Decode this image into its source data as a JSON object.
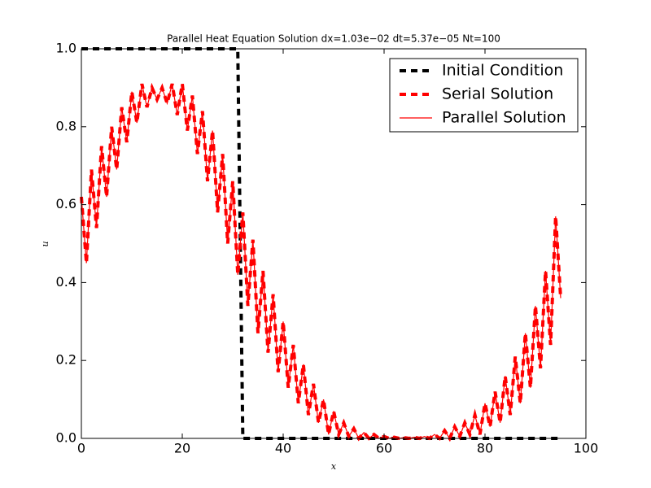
{
  "chart_data": {
    "type": "line",
    "title": "Parallel Heat Equation Solution dx=1.03e−02  dt=5.37e−05  Nt=100",
    "xlabel": "x",
    "ylabel": "u",
    "x": [
      0,
      1,
      2,
      3,
      4,
      5,
      6,
      7,
      8,
      9,
      10,
      11,
      12,
      13,
      14,
      15,
      16,
      17,
      18,
      19,
      20,
      21,
      22,
      23,
      24,
      25,
      26,
      27,
      28,
      29,
      30,
      31,
      32,
      33,
      34,
      35,
      36,
      37,
      38,
      39,
      40,
      41,
      42,
      43,
      44,
      45,
      46,
      47,
      48,
      49,
      50,
      51,
      52,
      53,
      54,
      55,
      56,
      57,
      58,
      59,
      60,
      61,
      62,
      63,
      64,
      65,
      66,
      67,
      68,
      69,
      70,
      71,
      72,
      73,
      74,
      75,
      76,
      77,
      78,
      79,
      80,
      81,
      82,
      83,
      84,
      85,
      86,
      87,
      88,
      89,
      90,
      91,
      92,
      93,
      94,
      95
    ],
    "series": [
      {
        "name": "Initial Condition",
        "color": "#000000",
        "linestyle": "dashed",
        "values": [
          1,
          1,
          1,
          1,
          1,
          1,
          1,
          1,
          1,
          1,
          1,
          1,
          1,
          1,
          1,
          1,
          1,
          1,
          1,
          1,
          1,
          1,
          1,
          1,
          1,
          1,
          1,
          1,
          1,
          1,
          1,
          1,
          0,
          0,
          0,
          0,
          0,
          0,
          0,
          0,
          0,
          0,
          0,
          0,
          0,
          0,
          0,
          0,
          0,
          0,
          0,
          0,
          0,
          0,
          0,
          0,
          0,
          0,
          0,
          0,
          0,
          0,
          0,
          0,
          0,
          0,
          0,
          0,
          0,
          0,
          0,
          0,
          0,
          0,
          0,
          0,
          0,
          0,
          0,
          0,
          0,
          0,
          0,
          0,
          0,
          0,
          0,
          0,
          0,
          0,
          0,
          0,
          0,
          0,
          0,
          0
        ]
      },
      {
        "name": "Serial Solution",
        "color": "#ff0000",
        "linestyle": "dashed",
        "values": [
          0.62,
          0.45,
          0.69,
          0.54,
          0.75,
          0.62,
          0.8,
          0.69,
          0.85,
          0.76,
          0.89,
          0.81,
          0.91,
          0.85,
          0.9,
          0.87,
          0.9,
          0.86,
          0.91,
          0.83,
          0.91,
          0.79,
          0.88,
          0.73,
          0.84,
          0.66,
          0.79,
          0.58,
          0.73,
          0.5,
          0.66,
          0.42,
          0.58,
          0.34,
          0.51,
          0.27,
          0.43,
          0.22,
          0.37,
          0.17,
          0.3,
          0.13,
          0.24,
          0.09,
          0.19,
          0.06,
          0.14,
          0.04,
          0.1,
          0.01,
          0.07,
          0.01,
          0.04,
          0.005,
          0.025,
          0,
          0.015,
          0,
          0.01,
          0,
          0.005,
          0,
          0.003,
          0,
          0.002,
          0,
          0.003,
          0,
          0.005,
          0,
          0.01,
          0,
          0.02,
          0,
          0.03,
          0.005,
          0.04,
          0.01,
          0.06,
          0.01,
          0.09,
          0.03,
          0.12,
          0.04,
          0.16,
          0.06,
          0.21,
          0.09,
          0.27,
          0.13,
          0.34,
          0.18,
          0.43,
          0.24,
          0.57,
          0.36
        ]
      },
      {
        "name": "Parallel Solution",
        "color": "#ff0000",
        "linestyle": "solid",
        "values": [
          0.62,
          0.45,
          0.69,
          0.54,
          0.75,
          0.62,
          0.8,
          0.69,
          0.85,
          0.76,
          0.89,
          0.81,
          0.91,
          0.85,
          0.9,
          0.87,
          0.9,
          0.86,
          0.91,
          0.83,
          0.91,
          0.79,
          0.88,
          0.73,
          0.84,
          0.66,
          0.79,
          0.58,
          0.73,
          0.5,
          0.66,
          0.42,
          0.58,
          0.34,
          0.51,
          0.27,
          0.43,
          0.22,
          0.37,
          0.17,
          0.3,
          0.13,
          0.24,
          0.09,
          0.19,
          0.06,
          0.14,
          0.04,
          0.1,
          0.01,
          0.07,
          0.01,
          0.04,
          0.005,
          0.025,
          0,
          0.015,
          0,
          0.01,
          0,
          0.005,
          0,
          0.003,
          0,
          0.002,
          0,
          0.003,
          0,
          0.005,
          0,
          0.01,
          0,
          0.02,
          0,
          0.03,
          0.005,
          0.04,
          0.01,
          0.06,
          0.01,
          0.09,
          0.03,
          0.12,
          0.04,
          0.16,
          0.06,
          0.21,
          0.09,
          0.27,
          0.13,
          0.34,
          0.18,
          0.43,
          0.24,
          0.57,
          0.36
        ]
      }
    ],
    "xlim": [
      0,
      100
    ],
    "xticks": [
      0,
      20,
      40,
      60,
      80,
      100
    ],
    "ylim": [
      0,
      1
    ],
    "yticks": [
      {
        "value": 0,
        "label": "0.0"
      },
      0.2,
      0.4,
      0.6,
      0.8,
      {
        "value": 1,
        "label": "1.0"
      }
    ],
    "grid": false,
    "legend": "upper right"
  }
}
